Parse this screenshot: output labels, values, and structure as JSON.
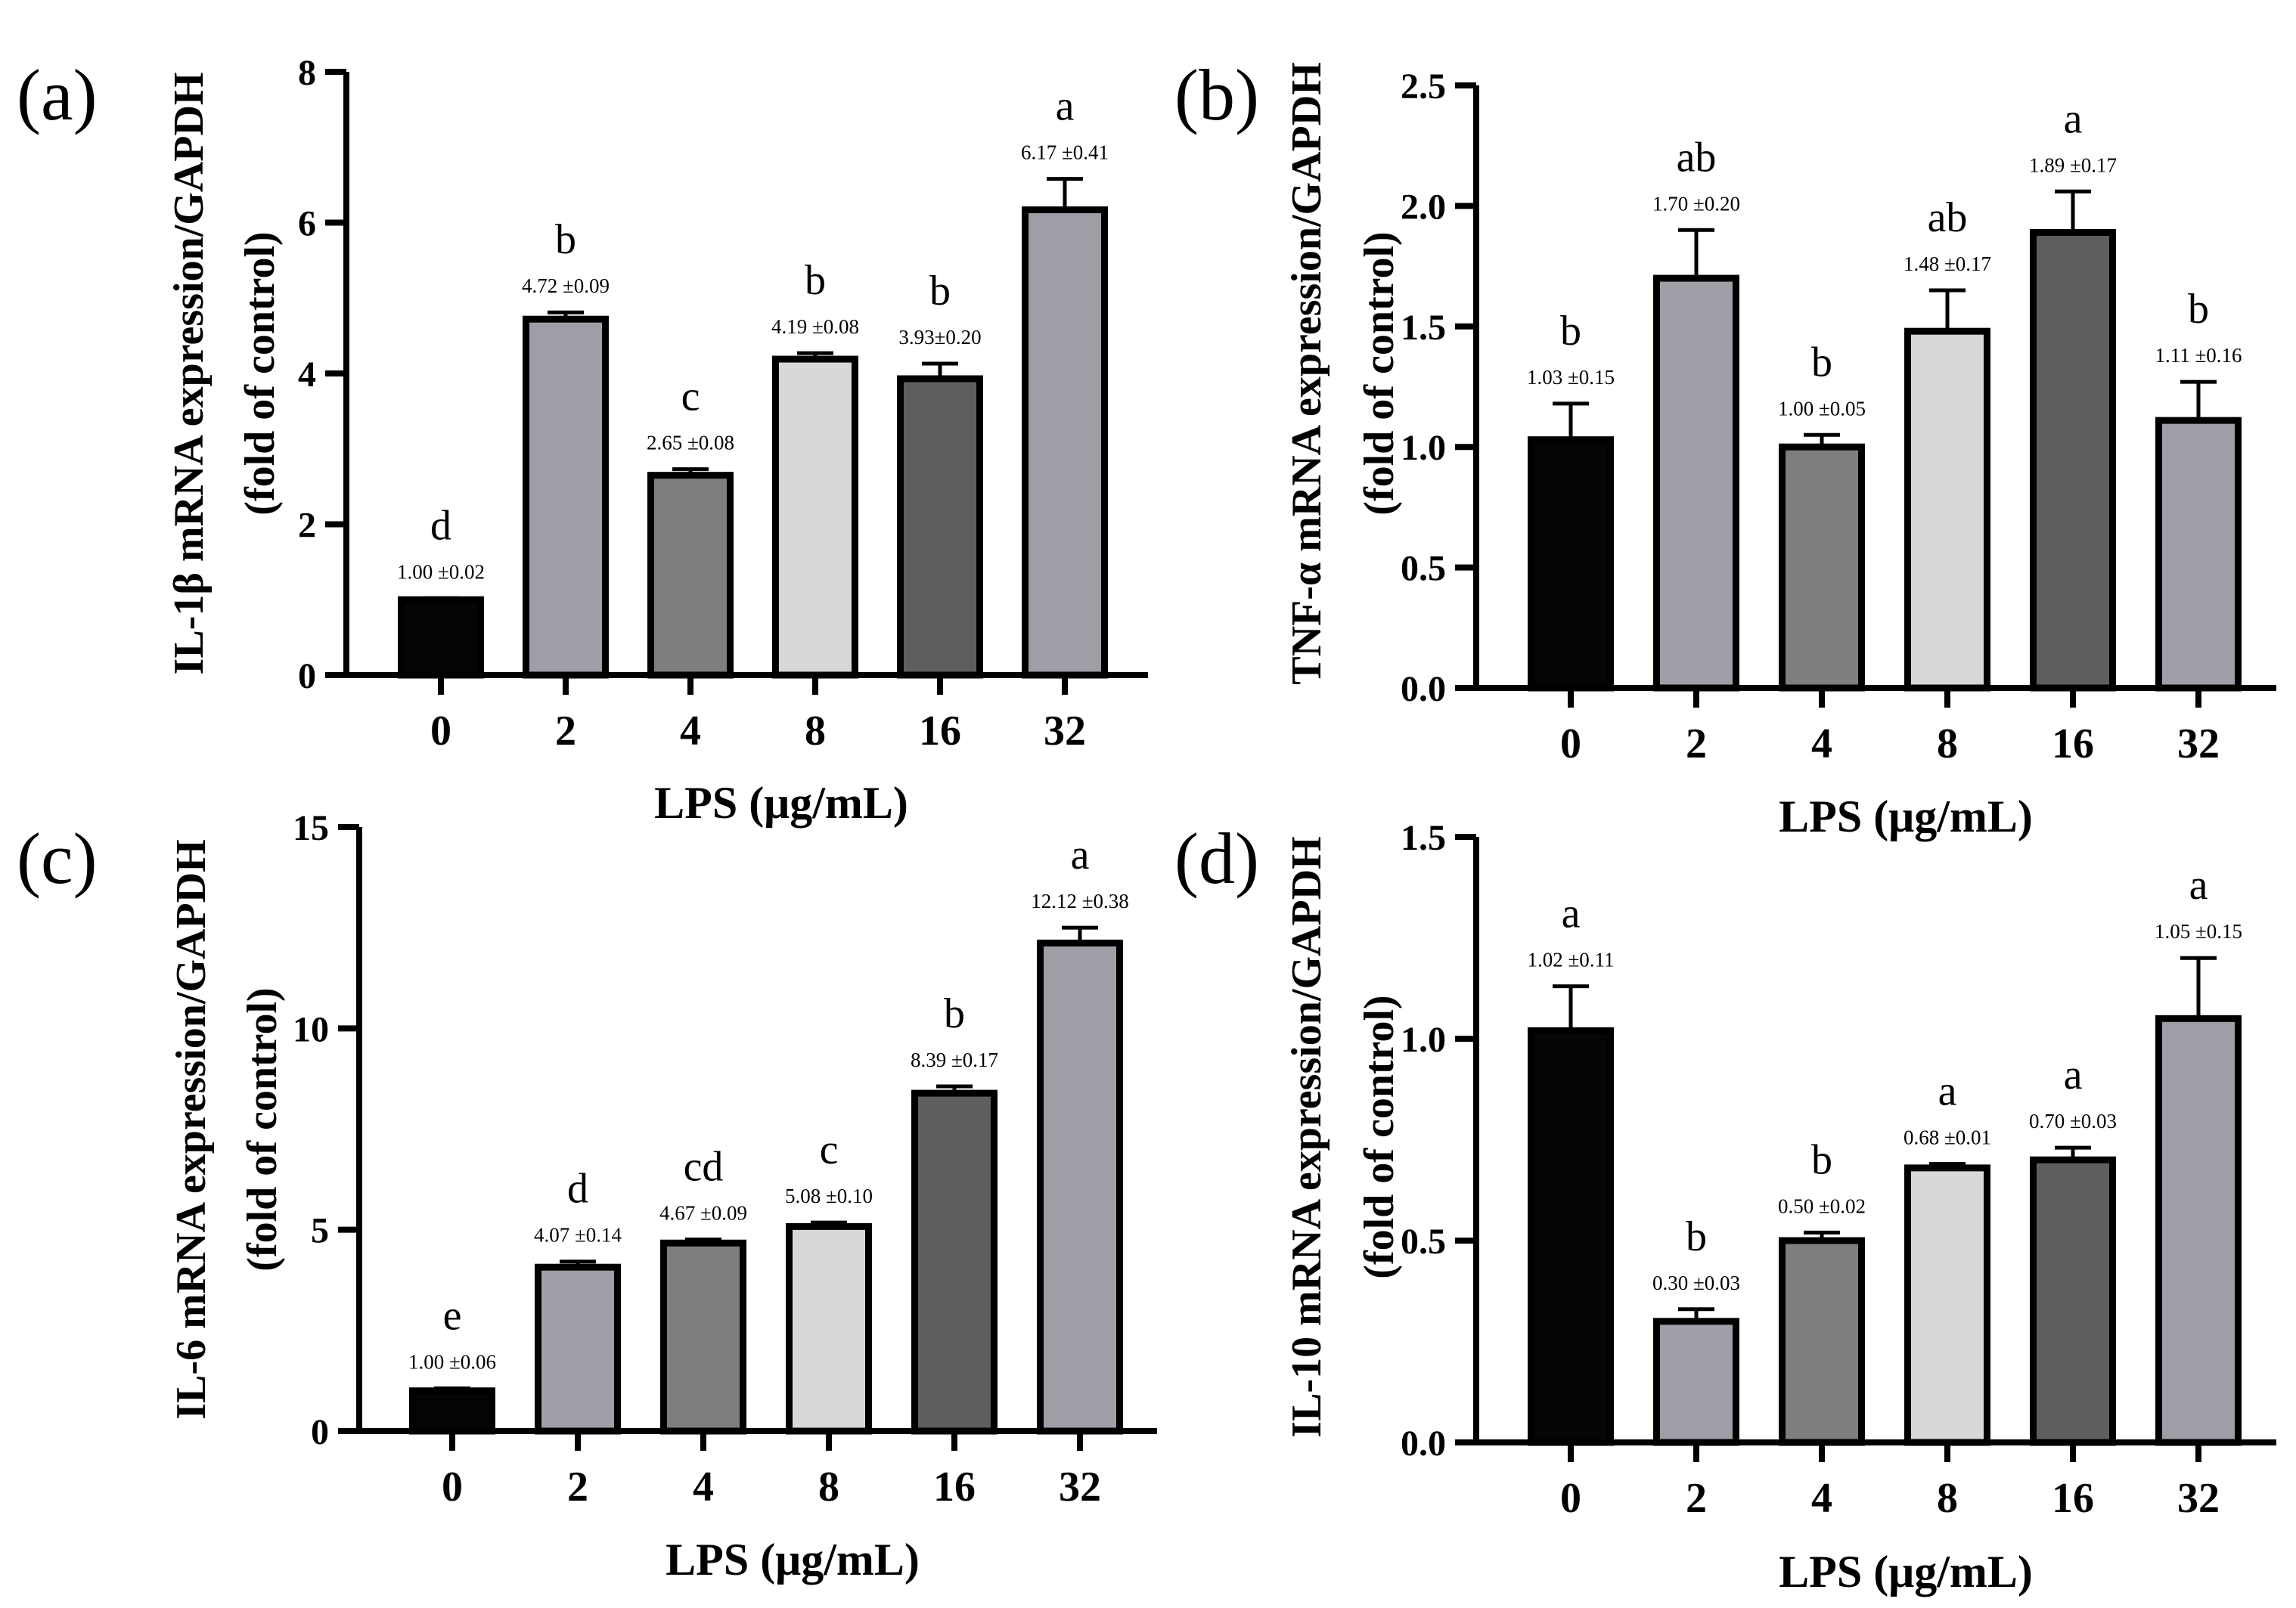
{
  "chart_data": [
    {
      "panel_label": "(a)",
      "type": "bar",
      "categories": [
        "0",
        "2",
        "4",
        "8",
        "16",
        "32"
      ],
      "values": [
        1.0,
        4.72,
        2.65,
        4.19,
        3.93,
        6.17
      ],
      "errors": [
        0.02,
        0.09,
        0.08,
        0.08,
        0.2,
        0.41
      ],
      "value_labels": [
        "1.00 ±0.02",
        "4.72 ±0.09",
        "2.65 ±0.08",
        "4.19 ±0.08",
        "3.93±0.20",
        "6.17 ±0.41"
      ],
      "sig_letters": [
        "d",
        "b",
        "c",
        "b",
        "b",
        "a"
      ],
      "ylabel": "IL-1β mRNA expression/GAPDH",
      "ylabel2": "(fold of control)",
      "xlabel": "LPS (μg/mL)",
      "ylim": [
        0,
        8
      ],
      "yticks": [
        0,
        2,
        4,
        6,
        8
      ],
      "ytick_labels": [
        "0",
        "2",
        "4",
        "6",
        "8"
      ]
    },
    {
      "panel_label": "(b)",
      "type": "bar",
      "categories": [
        "0",
        "2",
        "4",
        "8",
        "16",
        "32"
      ],
      "values": [
        1.03,
        1.7,
        1.0,
        1.48,
        1.89,
        1.11
      ],
      "errors": [
        0.15,
        0.2,
        0.05,
        0.17,
        0.17,
        0.16
      ],
      "value_labels": [
        "1.03 ±0.15",
        "1.70 ±0.20",
        "1.00 ±0.05",
        "1.48 ±0.17",
        "1.89 ±0.17",
        "1.11 ±0.16"
      ],
      "sig_letters": [
        "b",
        "ab",
        "b",
        "ab",
        "a",
        "b"
      ],
      "ylabel": "TNF-α mRNA expression/GAPDH",
      "ylabel2": "(fold of control)",
      "xlabel": "LPS (μg/mL)",
      "ylim": [
        0,
        2.5
      ],
      "yticks": [
        0,
        0.5,
        1.0,
        1.5,
        2.0,
        2.5
      ],
      "ytick_labels": [
        "0.0",
        "0.5",
        "1.0",
        "1.5",
        "2.0",
        "2.5"
      ]
    },
    {
      "panel_label": "(c)",
      "type": "bar",
      "categories": [
        "0",
        "2",
        "4",
        "8",
        "16",
        "32"
      ],
      "values": [
        1.0,
        4.07,
        4.67,
        5.08,
        8.39,
        12.12
      ],
      "errors": [
        0.06,
        0.14,
        0.09,
        0.1,
        0.17,
        0.38
      ],
      "value_labels": [
        "1.00 ±0.06",
        "4.07 ±0.14",
        "4.67 ±0.09",
        "5.08 ±0.10",
        "8.39 ±0.17",
        "12.12 ±0.38"
      ],
      "sig_letters": [
        "e",
        "d",
        "cd",
        "c",
        "b",
        "a"
      ],
      "ylabel": "IL-6 mRNA expression/GAPDH",
      "ylabel2": "(fold of control)",
      "xlabel": "LPS (μg/mL)",
      "ylim": [
        0,
        15
      ],
      "yticks": [
        0,
        5,
        10,
        15
      ],
      "ytick_labels": [
        "0",
        "5",
        "10",
        "15"
      ]
    },
    {
      "panel_label": "(d)",
      "type": "bar",
      "categories": [
        "0",
        "2",
        "4",
        "8",
        "16",
        "32"
      ],
      "values": [
        1.02,
        0.3,
        0.5,
        0.68,
        0.7,
        1.05
      ],
      "errors": [
        0.11,
        0.03,
        0.02,
        0.01,
        0.03,
        0.15
      ],
      "value_labels": [
        "1.02 ±0.11",
        "0.30 ±0.03",
        "0.50 ±0.02",
        "0.68 ±0.01",
        "0.70 ±0.03",
        "1.05 ±0.15"
      ],
      "sig_letters": [
        "a",
        "b",
        "b",
        "a",
        "a",
        "a"
      ],
      "ylabel": "IL-10 mRNA expression/GAPDH",
      "ylabel2": "(fold of control)",
      "xlabel": "LPS (μg/mL)",
      "ylim": [
        0,
        1.5
      ],
      "yticks": [
        0,
        0.5,
        1.0,
        1.5
      ],
      "ytick_labels": [
        "0.0",
        "0.5",
        "1.0",
        "1.5"
      ]
    }
  ],
  "bar_colors": [
    "#050505",
    "#9e9ea6",
    "#7e7e7e",
    "#d8d8d8",
    "#5e5e5e",
    "#9e9ea6"
  ]
}
